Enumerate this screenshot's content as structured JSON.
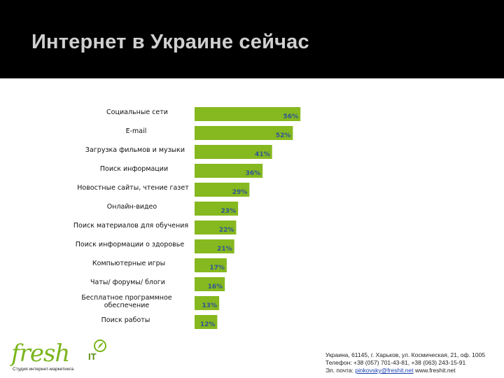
{
  "slide": {
    "title": "Интернет в Украине сейчас"
  },
  "chart_data": {
    "type": "bar",
    "orientation": "horizontal",
    "categories": [
      "Социальные сети",
      "E-mail",
      "Загрузка фильмов и музыки",
      "Поиск информации",
      "Новостные сайты, чтение газет",
      "Онлайн-видео",
      "Поиск материалов для обучения",
      "Поиск информации о здоровье",
      "Компьютерные игры",
      "Чаты/ форумы/ блоги",
      "Бесплатное программное обеспечение",
      "Поиск работы"
    ],
    "values": [
      56,
      52,
      41,
      36,
      29,
      23,
      22,
      21,
      17,
      16,
      13,
      12
    ],
    "value_labels": [
      "56%",
      "52%",
      "41%",
      "36%",
      "29%",
      "23%",
      "22%",
      "21%",
      "17%",
      "16%",
      "13%",
      "12%"
    ],
    "unit": "%",
    "bar_color": "#86b81f",
    "value_label_color": "#2f5597",
    "legend": "none",
    "grid": false
  },
  "logo": {
    "word": "fresh",
    "suffix": "IT",
    "tagline": "Студия интернет-маркетинга",
    "color": "#7ab51d"
  },
  "contacts": {
    "line1": "Украина, 61145, г. Харьков, ул. Космическая, 21, оф. 1005",
    "line2": "Телефон: +38 (057) 701-43-81, +38 (063) 243-15-91",
    "email_prefix": "Эл. почта: ",
    "email": "pinkovsky@freshit.net",
    "website": "www.freshit.net"
  }
}
